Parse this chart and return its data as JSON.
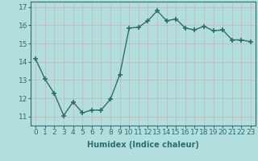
{
  "x": [
    0,
    1,
    2,
    3,
    4,
    5,
    6,
    7,
    8,
    9,
    10,
    11,
    12,
    13,
    14,
    15,
    16,
    17,
    18,
    19,
    20,
    21,
    22,
    23
  ],
  "y": [
    14.15,
    13.05,
    12.25,
    11.05,
    11.8,
    11.2,
    11.35,
    11.35,
    11.95,
    13.3,
    15.85,
    15.9,
    16.25,
    16.8,
    16.25,
    16.35,
    15.85,
    15.75,
    15.95,
    15.7,
    15.75,
    15.2,
    15.2,
    15.1
  ],
  "line_color": "#2e6e6e",
  "marker": "+",
  "marker_size": 4,
  "bg_color": "#b2dede",
  "grid_color": "#c8eeee",
  "title": "",
  "xlabel": "Humidex (Indice chaleur)",
  "ylabel": "",
  "xlim": [
    -0.5,
    23.5
  ],
  "ylim": [
    10.5,
    17.3
  ],
  "yticks": [
    11,
    12,
    13,
    14,
    15,
    16,
    17
  ],
  "xticks": [
    0,
    1,
    2,
    3,
    4,
    5,
    6,
    7,
    8,
    9,
    10,
    11,
    12,
    13,
    14,
    15,
    16,
    17,
    18,
    19,
    20,
    21,
    22,
    23
  ],
  "xlabel_fontsize": 7,
  "tick_fontsize": 6.5,
  "line_width": 1.0
}
